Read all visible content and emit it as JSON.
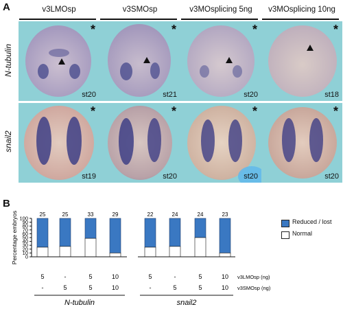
{
  "panel_a": {
    "letter": "A",
    "columns": [
      "v3LMOsp",
      "v3SMOsp",
      "v3MOsplicing 5ng",
      "v3MOsplicing 10ng"
    ],
    "rows": [
      "N-tubulin",
      "snail2"
    ],
    "stages_row1": [
      "st20",
      "st21",
      "st20",
      "st18"
    ],
    "stages_row2": [
      "st19",
      "st20",
      "st20",
      "st20"
    ],
    "star": "*",
    "colors": {
      "background": "#8fd0d6",
      "embryo": "#d7c5bd",
      "stain": "#3e3f86"
    }
  },
  "panel_b": {
    "letter": "B",
    "legend": [
      "Reduced / lost",
      "Normal"
    ],
    "legend_colors": [
      "#3a78c2",
      "#ffffff"
    ],
    "row_labels": [
      "v3LMOsp (ng)",
      "v3SMOsp (ng)"
    ],
    "doses_lmo": [
      "5",
      "-",
      "5",
      "10",
      "5",
      "-",
      "5",
      "10"
    ],
    "doses_smo": [
      "-",
      "5",
      "5",
      "10",
      "-",
      "5",
      "5",
      "10"
    ],
    "groups": [
      "N-tubulin",
      "snail2"
    ]
  },
  "chart_data": {
    "type": "bar",
    "stacked": true,
    "ylabel": "Percentage embryos",
    "ylim": [
      0,
      100
    ],
    "yticks": [
      0,
      10,
      20,
      30,
      40,
      50,
      60,
      70,
      80,
      90,
      100
    ],
    "n_labels": [
      "25",
      "25",
      "33",
      "29",
      "22",
      "24",
      "24",
      "23"
    ],
    "series": [
      {
        "name": "Reduced / lost",
        "values": [
          75,
          73,
          52,
          90,
          75,
          73,
          50,
          90
        ]
      },
      {
        "name": "Normal",
        "values": [
          25,
          27,
          48,
          10,
          25,
          27,
          50,
          10
        ]
      }
    ]
  }
}
